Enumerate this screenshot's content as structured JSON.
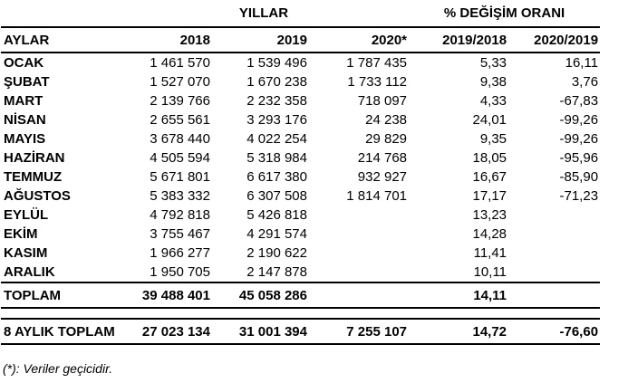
{
  "table": {
    "group_headers": {
      "years": "YILLAR",
      "change_rate": "% DEĞİŞİM ORANI"
    },
    "columns": [
      "AYLAR",
      "2018",
      "2019",
      "2020*",
      "2019/2018",
      "2020/2019"
    ],
    "month_rows": [
      {
        "label": "OCAK",
        "values": [
          "1 461 570",
          "1 539 496",
          "1 787 435",
          "5,33",
          "16,11"
        ]
      },
      {
        "label": "ŞUBAT",
        "values": [
          "1 527 070",
          "1 670 238",
          "1 733 112",
          "9,38",
          "3,76"
        ]
      },
      {
        "label": "MART",
        "values": [
          "2 139 766",
          "2 232 358",
          "718 097",
          "4,33",
          "-67,83"
        ]
      },
      {
        "label": "NİSAN",
        "values": [
          "2 655 561",
          "3 293 176",
          "24 238",
          "24,01",
          "-99,26"
        ]
      },
      {
        "label": "MAYIS",
        "values": [
          "3 678 440",
          "4 022 254",
          "29 829",
          "9,35",
          "-99,26"
        ]
      },
      {
        "label": "HAZİRAN",
        "values": [
          "4 505 594",
          "5 318 984",
          "214 768",
          "18,05",
          "-95,96"
        ]
      },
      {
        "label": "TEMMUZ",
        "values": [
          "5 671 801",
          "6 617 380",
          "932 927",
          "16,67",
          "-85,90"
        ]
      },
      {
        "label": "AĞUSTOS",
        "values": [
          "5 383 332",
          "6 307 508",
          "1 814 701",
          "17,17",
          "-71,23"
        ]
      },
      {
        "label": "EYLÜL",
        "values": [
          "4 792 818",
          "5 426 818",
          "",
          "13,23",
          ""
        ]
      },
      {
        "label": "EKİM",
        "values": [
          "3 755 467",
          "4 291 574",
          "",
          "14,28",
          ""
        ]
      },
      {
        "label": "KASIM",
        "values": [
          "1 966 277",
          "2 190 622",
          "",
          "11,41",
          ""
        ]
      },
      {
        "label": "ARALIK",
        "values": [
          "1 950 705",
          "2 147 878",
          "",
          "10,11",
          ""
        ]
      }
    ],
    "total_row": {
      "label": "TOPLAM",
      "values": [
        "39 488 401",
        "45 058 286",
        "",
        "14,11",
        ""
      ]
    },
    "eight_month_total_row": {
      "label": "8 AYLIK TOPLAM",
      "values": [
        "27 023 134",
        "31 001 394",
        "7 255 107",
        "14,72",
        "-76,60"
      ]
    }
  },
  "footnote": "(*): Veriler geçicidir.",
  "colors": {
    "text": "#000000",
    "background": "#ffffff",
    "line": "#000000"
  }
}
